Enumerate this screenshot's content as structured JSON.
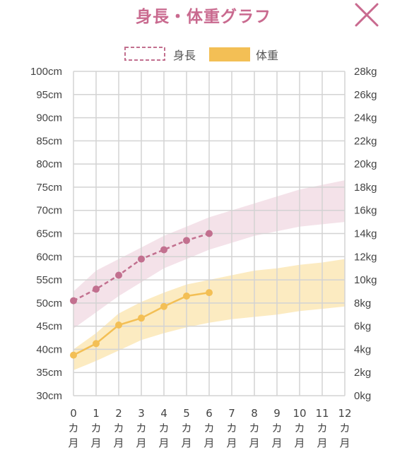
{
  "header": {
    "title": "身長・体重グラフ"
  },
  "colors": {
    "height": "#c2708f",
    "height_band": "#f2dde5",
    "weight": "#f3bf55",
    "weight_band": "#fbe7b6",
    "title": "#c96a8f",
    "grid": "#d3d3d3"
  },
  "chart_data": {
    "type": "line",
    "title": "身長・体重グラフ",
    "legend": {
      "placement": "top-center",
      "entries": [
        "身長",
        "体重"
      ]
    },
    "x": {
      "values": [
        0,
        1,
        2,
        3,
        4,
        5,
        6,
        7,
        8,
        9,
        10,
        11,
        12
      ],
      "tick_labels": [
        [
          "0",
          "カ",
          "月"
        ],
        [
          "1",
          "カ",
          "月"
        ],
        [
          "2",
          "カ",
          "月"
        ],
        [
          "3",
          "カ",
          "月"
        ],
        [
          "4",
          "カ",
          "月"
        ],
        [
          "5",
          "カ",
          "月"
        ],
        [
          "6",
          "カ",
          "月"
        ],
        [
          "7",
          "カ",
          "月"
        ],
        [
          "8",
          "カ",
          "月"
        ],
        [
          "9",
          "カ",
          "月"
        ],
        [
          "10",
          "カ",
          "月"
        ],
        [
          "11",
          "カ",
          "月"
        ],
        [
          "12",
          "カ",
          "月"
        ]
      ],
      "range": [
        0,
        12
      ]
    },
    "y_left": {
      "range": [
        30,
        100
      ],
      "ticks": [
        100,
        95,
        90,
        85,
        80,
        75,
        70,
        65,
        60,
        55,
        50,
        45,
        40,
        35,
        30
      ],
      "unit": "cm",
      "tick_labels": [
        "100cm",
        "95cm",
        "90cm",
        "85cm",
        "80cm",
        "75cm",
        "70cm",
        "65cm",
        "60cm",
        "55cm",
        "50cm",
        "45cm",
        "40cm",
        "35cm",
        "30cm"
      ]
    },
    "y_right": {
      "range": [
        0,
        28
      ],
      "ticks": [
        28,
        26,
        24,
        22,
        20,
        18,
        16,
        14,
        12,
        10,
        8,
        6,
        4,
        2,
        0
      ],
      "unit": "kg",
      "tick_labels": [
        "28kg",
        "26kg",
        "24kg",
        "22kg",
        "20kg",
        "18kg",
        "16kg",
        "14kg",
        "12kg",
        "10kg",
        "8kg",
        "6kg",
        "4kg",
        "2kg",
        "0kg"
      ]
    },
    "grid": true,
    "series": [
      {
        "name": "身長",
        "axis": "left",
        "style": "dashed",
        "x": [
          0,
          1,
          2,
          3,
          4,
          5,
          6
        ],
        "values": [
          50.5,
          53.0,
          56.0,
          59.5,
          61.5,
          63.5,
          65.0
        ]
      },
      {
        "name": "体重",
        "axis": "right",
        "style": "solid",
        "x": [
          0,
          1,
          2,
          3,
          4,
          5,
          6
        ],
        "values": [
          3.5,
          4.5,
          6.1,
          6.7,
          7.7,
          8.6,
          8.9
        ]
      }
    ],
    "bands": [
      {
        "series": "身長",
        "axis": "left",
        "x": [
          0,
          1,
          2,
          3,
          4,
          5,
          6,
          7,
          8,
          9,
          10,
          11,
          12
        ],
        "lower": [
          44.5,
          48.0,
          51.5,
          54.5,
          57.5,
          59.5,
          61.5,
          63.0,
          64.5,
          65.5,
          66.5,
          67.0,
          67.5
        ],
        "upper": [
          52.5,
          57.0,
          59.5,
          62.0,
          64.5,
          66.5,
          68.5,
          70.0,
          71.5,
          73.0,
          74.5,
          75.5,
          76.5
        ]
      },
      {
        "series": "体重",
        "axis": "right",
        "x": [
          0,
          1,
          2,
          3,
          4,
          5,
          6,
          7,
          8,
          9,
          10,
          11,
          12
        ],
        "lower": [
          2.2,
          3.0,
          3.9,
          4.8,
          5.4,
          5.9,
          6.3,
          6.6,
          6.8,
          7.0,
          7.3,
          7.5,
          7.7
        ],
        "upper": [
          4.0,
          5.4,
          7.1,
          8.1,
          8.9,
          9.6,
          10.0,
          10.4,
          10.8,
          11.0,
          11.3,
          11.5,
          11.8
        ]
      }
    ]
  }
}
